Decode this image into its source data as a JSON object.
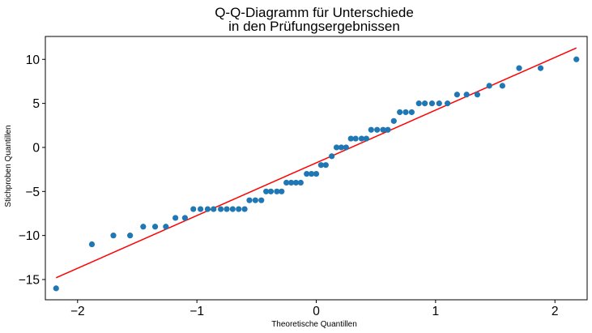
{
  "chart_data": {
    "type": "scatter",
    "title_lines": [
      "Q-Q-Diagramm für Unterschiede",
      "in den Prüfungsergebnissen"
    ],
    "xlabel": "Theoretische Quantillen",
    "ylabel": "Stichproben Quantillen",
    "xlim": [
      -2.27,
      2.27
    ],
    "ylim": [
      -17.3,
      12.6
    ],
    "xticks": [
      -2,
      -1,
      0,
      1,
      2
    ],
    "yticks": [
      -15,
      -10,
      -5,
      0,
      5,
      10
    ],
    "xtick_labels": [
      "−2",
      "−1",
      "0",
      "1",
      "2"
    ],
    "ytick_labels": [
      "−15",
      "−10",
      "−5",
      "0",
      "5",
      "10"
    ],
    "point_color": "#1f77b4",
    "line_color": "#ff0000",
    "grid": false,
    "fit_line": {
      "x": [
        -2.18,
        2.18
      ],
      "y": [
        -14.8,
        11.3
      ]
    },
    "points": [
      [
        -2.18,
        -16
      ],
      [
        -1.88,
        -11
      ],
      [
        -1.7,
        -10
      ],
      [
        -1.56,
        -10
      ],
      [
        -1.45,
        -9
      ],
      [
        -1.35,
        -9
      ],
      [
        -1.26,
        -9
      ],
      [
        -1.18,
        -8
      ],
      [
        -1.1,
        -8
      ],
      [
        -1.03,
        -7
      ],
      [
        -0.97,
        -7
      ],
      [
        -0.91,
        -7
      ],
      [
        -0.86,
        -7
      ],
      [
        -0.8,
        -7
      ],
      [
        -0.75,
        -7
      ],
      [
        -0.7,
        -7
      ],
      [
        -0.65,
        -7
      ],
      [
        -0.6,
        -7
      ],
      [
        -0.56,
        -6
      ],
      [
        -0.51,
        -6
      ],
      [
        -0.46,
        -6
      ],
      [
        -0.42,
        -5
      ],
      [
        -0.38,
        -5
      ],
      [
        -0.33,
        -5
      ],
      [
        -0.29,
        -5
      ],
      [
        -0.25,
        -4
      ],
      [
        -0.21,
        -4
      ],
      [
        -0.17,
        -4
      ],
      [
        -0.13,
        -4
      ],
      [
        -0.08,
        -3
      ],
      [
        -0.04,
        -3
      ],
      [
        0.0,
        -3
      ],
      [
        0.04,
        -2
      ],
      [
        0.08,
        -2
      ],
      [
        0.13,
        -1
      ],
      [
        0.17,
        0
      ],
      [
        0.21,
        0
      ],
      [
        0.25,
        0
      ],
      [
        0.29,
        1
      ],
      [
        0.33,
        1
      ],
      [
        0.38,
        1
      ],
      [
        0.42,
        1
      ],
      [
        0.46,
        2
      ],
      [
        0.51,
        2
      ],
      [
        0.56,
        2
      ],
      [
        0.6,
        2
      ],
      [
        0.65,
        3
      ],
      [
        0.7,
        4
      ],
      [
        0.75,
        4
      ],
      [
        0.8,
        4
      ],
      [
        0.86,
        5
      ],
      [
        0.91,
        5
      ],
      [
        0.97,
        5
      ],
      [
        1.03,
        5
      ],
      [
        1.1,
        5
      ],
      [
        1.18,
        6
      ],
      [
        1.26,
        6
      ],
      [
        1.35,
        6
      ],
      [
        1.45,
        7
      ],
      [
        1.56,
        7
      ],
      [
        1.7,
        9
      ],
      [
        1.88,
        9
      ],
      [
        2.18,
        10
      ]
    ]
  }
}
